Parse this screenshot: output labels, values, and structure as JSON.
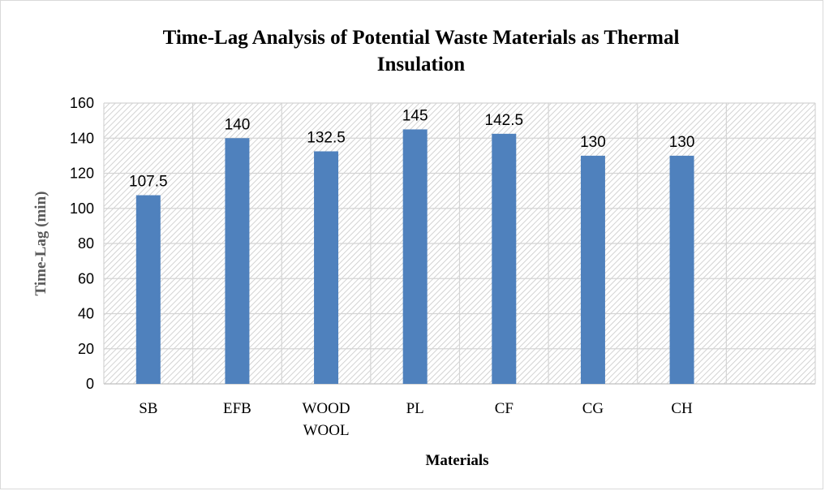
{
  "chart_data": {
    "type": "bar",
    "title_lines": [
      "Time-Lag Analysis of Potential Waste Materials as Thermal",
      "Insulation"
    ],
    "xlabel": "Materials",
    "ylabel": "Time-Lag (min)",
    "categories": [
      [
        "SB"
      ],
      [
        "EFB"
      ],
      [
        "WOOD",
        "WOOL"
      ],
      [
        "PL"
      ],
      [
        "CF"
      ],
      [
        "CG"
      ],
      [
        "CH"
      ],
      [
        ""
      ]
    ],
    "values": [
      107.5,
      140,
      132.5,
      145,
      142.5,
      130,
      130,
      null
    ],
    "data_labels": [
      "107.5",
      "140",
      "132.5",
      "145",
      "142.5",
      "130",
      "130",
      ""
    ],
    "ylim": [
      0,
      160
    ],
    "yticks": [
      0,
      20,
      40,
      60,
      80,
      100,
      120,
      140,
      160
    ],
    "grid": true,
    "legend": "none",
    "bar_color": "#4f81bd",
    "plot_pattern": "diagonal-hatch"
  }
}
